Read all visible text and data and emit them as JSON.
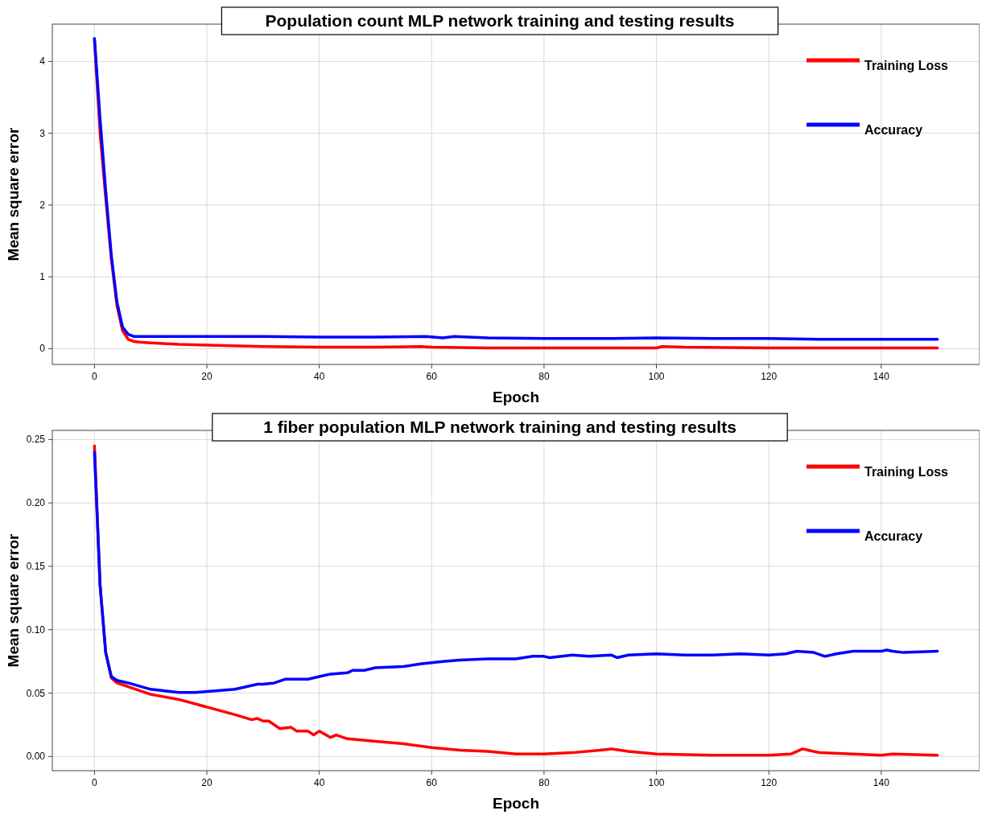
{
  "chart_data": [
    {
      "type": "line",
      "title": "Population count MLP network training and testing results",
      "xlabel": "Epoch",
      "ylabel": "Mean square error",
      "xlim": [
        -7.5,
        157.5
      ],
      "xticks": [
        0,
        20,
        40,
        60,
        80,
        100,
        120,
        140
      ],
      "ylim": [
        -0.22,
        4.52
      ],
      "yticks": [
        0,
        1,
        2,
        3,
        4
      ],
      "grid": true,
      "legend": "top right",
      "series": [
        {
          "name": "Training Loss",
          "color": "#ff0000",
          "x": [
            0,
            1,
            2,
            3,
            4,
            5,
            6,
            7,
            8,
            10,
            15,
            20,
            30,
            40,
            50,
            58,
            60,
            70,
            80,
            100,
            101,
            105,
            120,
            150
          ],
          "values": [
            4.3,
            3.0,
            2.1,
            1.25,
            0.6,
            0.25,
            0.13,
            0.1,
            0.09,
            0.08,
            0.06,
            0.05,
            0.03,
            0.02,
            0.02,
            0.03,
            0.02,
            0.01,
            0.01,
            0.01,
            0.03,
            0.02,
            0.01,
            0.01
          ]
        },
        {
          "name": "Accuracy",
          "color": "#0000ff",
          "x": [
            0,
            1,
            2,
            3,
            4,
            5,
            6,
            7,
            10,
            20,
            30,
            40,
            50,
            59,
            62,
            64,
            70,
            80,
            90,
            100,
            110,
            120,
            130,
            150
          ],
          "values": [
            4.32,
            3.2,
            2.2,
            1.3,
            0.65,
            0.3,
            0.2,
            0.17,
            0.17,
            0.17,
            0.17,
            0.16,
            0.16,
            0.17,
            0.15,
            0.17,
            0.15,
            0.14,
            0.14,
            0.15,
            0.14,
            0.14,
            0.13,
            0.13
          ]
        }
      ]
    },
    {
      "type": "line",
      "title": "1 fiber population MLP network training and testing results",
      "xlabel": "Epoch",
      "ylabel": "Mean square error",
      "xlim": [
        -7.5,
        157.5
      ],
      "xticks": [
        0,
        20,
        40,
        60,
        80,
        100,
        120,
        140
      ],
      "ylim": [
        -0.0112,
        0.2572
      ],
      "yticks": [
        {
          "value": 0,
          "label": "0.00"
        },
        {
          "value": 0.05,
          "label": "0.05"
        },
        {
          "value": 0.1,
          "label": "0.10"
        },
        {
          "value": 0.15,
          "label": "0.15"
        },
        {
          "value": 0.2,
          "label": "0.20"
        },
        {
          "value": 0.25,
          "label": "0.25"
        }
      ],
      "grid": true,
      "legend": "top right",
      "series": [
        {
          "name": "Training Loss",
          "color": "#ff0000",
          "x": [
            0,
            1,
            2,
            3,
            4,
            6,
            10,
            15,
            20,
            25,
            28,
            29,
            30,
            31,
            33,
            35,
            36,
            38,
            39,
            40,
            42,
            43,
            45,
            50,
            55,
            60,
            65,
            70,
            75,
            80,
            85,
            90,
            92,
            95,
            100,
            110,
            120,
            124,
            126,
            127,
            129,
            140,
            142,
            150
          ],
          "values": [
            0.245,
            0.135,
            0.082,
            0.062,
            0.058,
            0.055,
            0.049,
            0.045,
            0.039,
            0.033,
            0.029,
            0.03,
            0.028,
            0.028,
            0.022,
            0.023,
            0.02,
            0.02,
            0.017,
            0.02,
            0.015,
            0.017,
            0.014,
            0.012,
            0.01,
            0.007,
            0.005,
            0.004,
            0.002,
            0.002,
            0.003,
            0.005,
            0.006,
            0.004,
            0.002,
            0.001,
            0.001,
            0.002,
            0.006,
            0.005,
            0.003,
            0.001,
            0.002,
            0.001
          ]
        },
        {
          "name": "Accuracy",
          "color": "#0000ff",
          "x": [
            0,
            1,
            2,
            3,
            4,
            6,
            10,
            15,
            18,
            22,
            25,
            29,
            30,
            32,
            34,
            38,
            40,
            42,
            45,
            46,
            48,
            50,
            55,
            58,
            60,
            62,
            65,
            70,
            75,
            78,
            80,
            81,
            85,
            88,
            92,
            93,
            95,
            100,
            105,
            110,
            115,
            120,
            123,
            125,
            128,
            130,
            132,
            135,
            140,
            141,
            142,
            144,
            150
          ],
          "values": [
            0.24,
            0.135,
            0.082,
            0.063,
            0.06,
            0.058,
            0.053,
            0.0505,
            0.0505,
            0.052,
            0.053,
            0.057,
            0.057,
            0.058,
            0.061,
            0.061,
            0.063,
            0.065,
            0.066,
            0.068,
            0.068,
            0.07,
            0.071,
            0.073,
            0.074,
            0.075,
            0.076,
            0.077,
            0.077,
            0.079,
            0.079,
            0.078,
            0.08,
            0.079,
            0.08,
            0.078,
            0.08,
            0.081,
            0.08,
            0.08,
            0.081,
            0.08,
            0.081,
            0.083,
            0.082,
            0.079,
            0.081,
            0.083,
            0.083,
            0.084,
            0.083,
            0.082,
            0.083
          ]
        }
      ]
    }
  ]
}
